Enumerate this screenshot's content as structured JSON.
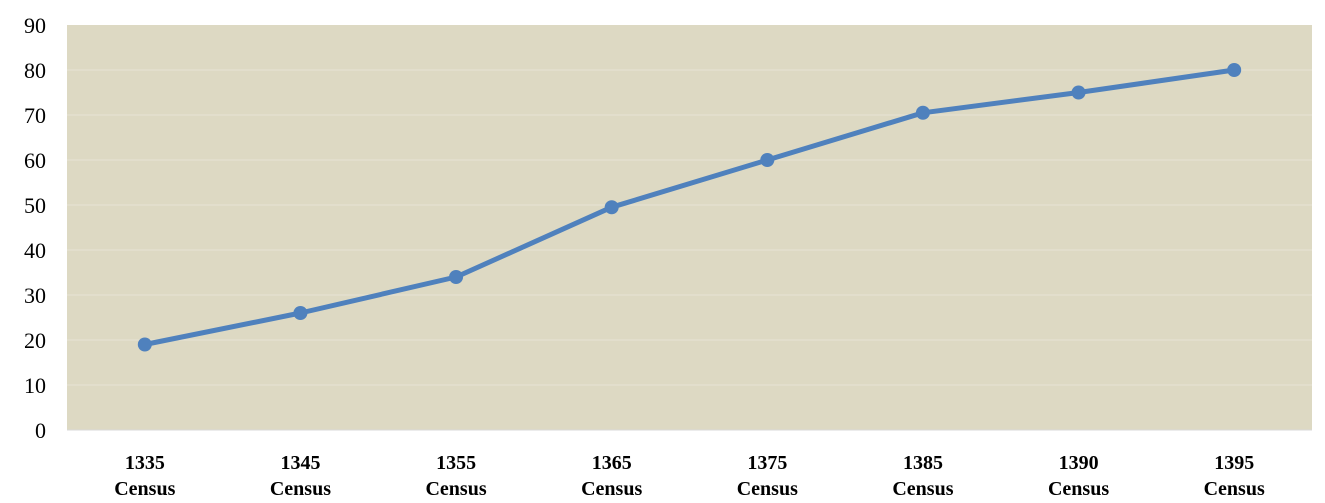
{
  "chart_data": {
    "type": "line",
    "title": "",
    "xlabel": "",
    "ylabel": "",
    "categories": [
      [
        "1335",
        "Census"
      ],
      [
        "1345",
        "Census"
      ],
      [
        "1355",
        "Census"
      ],
      [
        "1365",
        "Census"
      ],
      [
        "1375",
        "Census"
      ],
      [
        "1385",
        "Census"
      ],
      [
        "1390",
        "Census"
      ],
      [
        "1395",
        "Census"
      ]
    ],
    "series": [
      {
        "values": [
          19,
          26,
          34,
          49.5,
          60,
          70.5,
          75,
          80
        ]
      }
    ],
    "ylim": [
      0,
      90
    ],
    "yticks": [
      0,
      10,
      20,
      30,
      40,
      50,
      60,
      70,
      80,
      90
    ],
    "grid": true,
    "legend": "none",
    "colors": {
      "plot_background": "#ddd9c3",
      "gridline": "#e8e4d4",
      "line": "#4f81bd",
      "axis": "#d9d9d9"
    }
  }
}
